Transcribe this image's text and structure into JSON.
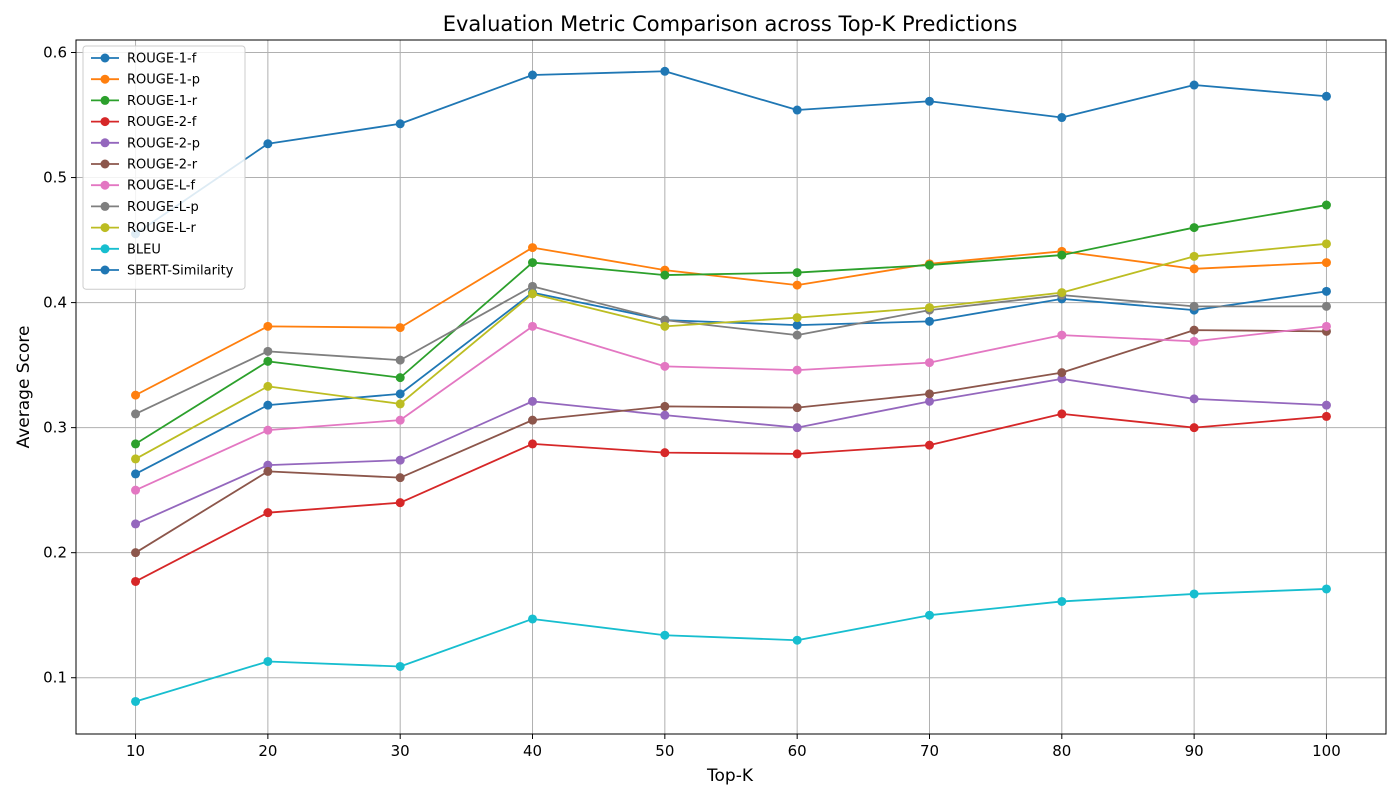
{
  "chart_data": {
    "type": "line",
    "title": "Evaluation Metric Comparison across Top-K Predictions",
    "xlabel": "Top-K",
    "ylabel": "Average Score",
    "x": [
      10,
      20,
      30,
      40,
      50,
      60,
      70,
      80,
      90,
      100
    ],
    "xticks": [
      "10",
      "20",
      "30",
      "40",
      "50",
      "60",
      "70",
      "80",
      "90",
      "100"
    ],
    "yticks": [
      "0.1",
      "0.2",
      "0.3",
      "0.4",
      "0.5",
      "0.6"
    ],
    "ylim": [
      0.055,
      0.61
    ],
    "xlim": [
      5.5,
      104.5
    ],
    "grid": true,
    "legend_position": "top-left",
    "series": [
      {
        "name": "ROUGE-1-f",
        "color": "#1f77b4",
        "values": [
          0.263,
          0.318,
          0.327,
          0.408,
          0.386,
          0.382,
          0.385,
          0.403,
          0.394,
          0.409
        ]
      },
      {
        "name": "ROUGE-1-p",
        "color": "#ff7f0e",
        "values": [
          0.326,
          0.381,
          0.38,
          0.444,
          0.426,
          0.414,
          0.431,
          0.441,
          0.427,
          0.432
        ]
      },
      {
        "name": "ROUGE-1-r",
        "color": "#2ca02c",
        "values": [
          0.287,
          0.353,
          0.34,
          0.432,
          0.422,
          0.424,
          0.43,
          0.438,
          0.46,
          0.478
        ]
      },
      {
        "name": "ROUGE-2-f",
        "color": "#d62728",
        "values": [
          0.177,
          0.232,
          0.24,
          0.287,
          0.28,
          0.279,
          0.286,
          0.311,
          0.3,
          0.309
        ]
      },
      {
        "name": "ROUGE-2-p",
        "color": "#9467bd",
        "values": [
          0.223,
          0.27,
          0.274,
          0.321,
          0.31,
          0.3,
          0.321,
          0.339,
          0.323,
          0.318
        ]
      },
      {
        "name": "ROUGE-2-r",
        "color": "#8c564b",
        "values": [
          0.2,
          0.265,
          0.26,
          0.306,
          0.317,
          0.316,
          0.327,
          0.344,
          0.378,
          0.377
        ]
      },
      {
        "name": "ROUGE-L-f",
        "color": "#e377c2",
        "values": [
          0.25,
          0.298,
          0.306,
          0.381,
          0.349,
          0.346,
          0.352,
          0.374,
          0.369,
          0.381
        ]
      },
      {
        "name": "ROUGE-L-p",
        "color": "#7f7f7f",
        "values": [
          0.311,
          0.361,
          0.354,
          0.413,
          0.386,
          0.374,
          0.394,
          0.406,
          0.397,
          0.397
        ]
      },
      {
        "name": "ROUGE-L-r",
        "color": "#bcbd22",
        "values": [
          0.275,
          0.333,
          0.319,
          0.407,
          0.381,
          0.388,
          0.396,
          0.408,
          0.437,
          0.447
        ]
      },
      {
        "name": "BLEU",
        "color": "#17becf",
        "values": [
          0.081,
          0.113,
          0.109,
          0.147,
          0.134,
          0.13,
          0.15,
          0.161,
          0.167,
          0.171
        ]
      },
      {
        "name": "SBERT-Similarity",
        "color": "#1f77b4",
        "values": [
          0.455,
          0.527,
          0.543,
          0.582,
          0.585,
          0.554,
          0.561,
          0.548,
          0.574,
          0.565
        ]
      }
    ]
  }
}
